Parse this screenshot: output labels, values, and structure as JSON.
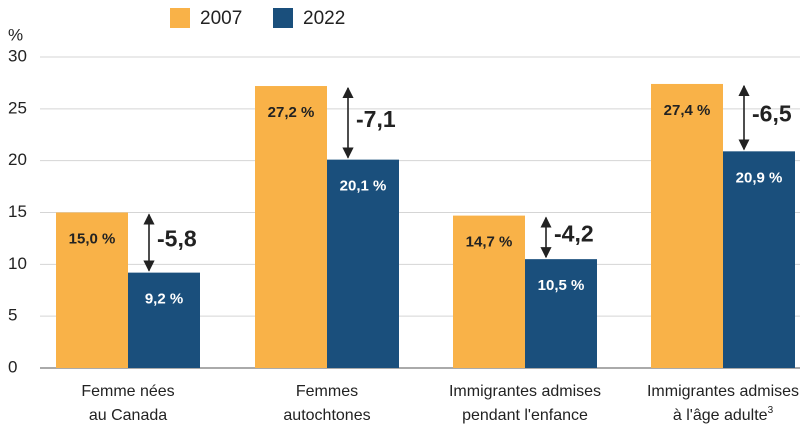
{
  "chart_data": {
    "type": "bar",
    "y_label": "%",
    "categories": [
      [
        "Femme nées",
        "au Canada"
      ],
      [
        "Femmes",
        "autochtones"
      ],
      [
        "Immigrantes admises",
        "pendant l'enfance"
      ],
      [
        "Immigrantes admises",
        "à l'âge adulte"
      ]
    ],
    "category_notes": [
      null,
      null,
      null,
      "3"
    ],
    "series": [
      {
        "name": "2007",
        "color": "#f9b248",
        "values": [
          15.0,
          27.2,
          14.7,
          27.4
        ],
        "value_labels": [
          "15,0 %",
          "27,2 %",
          "14,7 %",
          "27,4 %"
        ]
      },
      {
        "name": "2022",
        "color": "#1a4f7c",
        "values": [
          9.2,
          20.1,
          10.5,
          20.9
        ],
        "value_labels": [
          "9,2 %",
          "20,1 %",
          "10,5 %",
          "20,9 %"
        ]
      }
    ],
    "differences": {
      "values": [
        -5.8,
        -7.1,
        -4.2,
        -6.5
      ],
      "value_labels": [
        "-5,8",
        "-7,1",
        "-4,2",
        "-6,5"
      ]
    },
    "ylim": [
      0,
      30
    ],
    "yticks": [
      0,
      5,
      10,
      15,
      20,
      25,
      30
    ],
    "grid": true
  }
}
